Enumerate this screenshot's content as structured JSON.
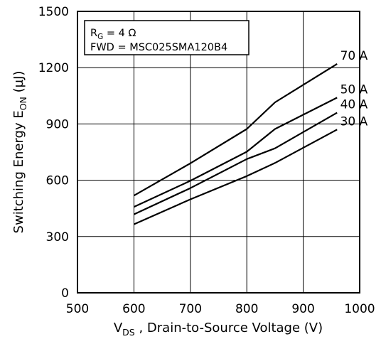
{
  "chart_data": {
    "type": "line",
    "xlabel_main": "V",
    "xlabel_sub": "DS",
    "xlabel_rest": " , Drain-to-Source Voltage (V)",
    "ylabel_main": "Switching Energy E",
    "ylabel_sub": "ON",
    "ylabel_rest": " (µJ)",
    "xlim": [
      500,
      1000
    ],
    "ylim": [
      0,
      1500
    ],
    "xticks": [
      "500",
      "600",
      "700",
      "800",
      "900",
      "1000"
    ],
    "yticks": [
      "0",
      "300",
      "600",
      "900",
      "1200",
      "1500"
    ],
    "grid": true,
    "annotation": {
      "line1_main": "R",
      "line1_sub": "G",
      "line1_rest": " = 4 Ω",
      "line2": "FWD = MSC025SMA120B4"
    },
    "series": [
      {
        "name": "70 A",
        "x": [
          600,
          700,
          800,
          850,
          960
        ],
        "y": [
          518,
          690,
          873,
          1015,
          1220
        ]
      },
      {
        "name": "50 A",
        "x": [
          600,
          700,
          800,
          850,
          960
        ],
        "y": [
          458,
          597,
          752,
          873,
          1040
        ]
      },
      {
        "name": "40 A",
        "x": [
          600,
          700,
          800,
          850,
          960
        ],
        "y": [
          418,
          558,
          713,
          770,
          960
        ]
      },
      {
        "name": "30 A",
        "x": [
          600,
          700,
          800,
          850,
          960
        ],
        "y": [
          365,
          498,
          622,
          692,
          870
        ]
      }
    ]
  }
}
